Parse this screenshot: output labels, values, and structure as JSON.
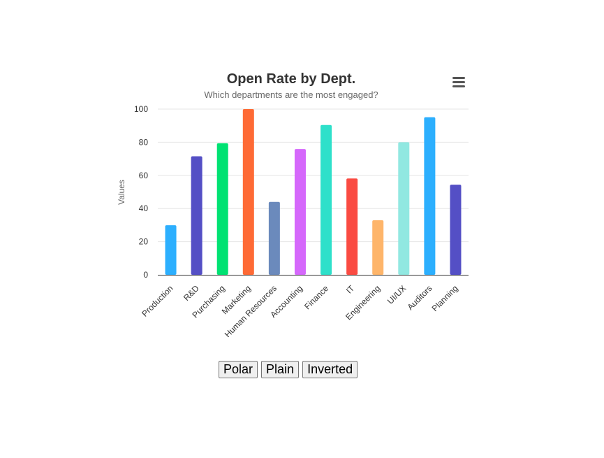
{
  "chart_data": {
    "type": "bar",
    "title": "Open Rate by Dept.",
    "subtitle": "Which departments are the most engaged?",
    "xlabel": "",
    "ylabel": "Values",
    "ylim": [
      0,
      100
    ],
    "yticks": [
      0,
      20,
      40,
      60,
      80,
      100
    ],
    "grid": true,
    "legend": false,
    "categories": [
      "Production",
      "R&D",
      "Purchasing",
      "Marketing",
      "Human Resources",
      "Accounting",
      "Finance",
      "IT",
      "Engineering",
      "UI/UX",
      "Auditors",
      "Planning"
    ],
    "values": [
      29.9,
      71.5,
      79.4,
      100,
      44.0,
      75.9,
      90.4,
      58.1,
      32.9,
      80.0,
      95.1,
      54.4
    ],
    "colors": [
      "#2caffe",
      "#544fc5",
      "#00e272",
      "#fe6a35",
      "#6b8abc",
      "#d568fb",
      "#2ee0ca",
      "#fa4b42",
      "#feb56a",
      "#91e8e1",
      "#2caffe",
      "#544fc5"
    ]
  },
  "controls": {
    "polar_label": "Polar",
    "plain_label": "Plain",
    "inverted_label": "Inverted"
  },
  "icons": {
    "menu": "hamburger-menu-icon"
  }
}
